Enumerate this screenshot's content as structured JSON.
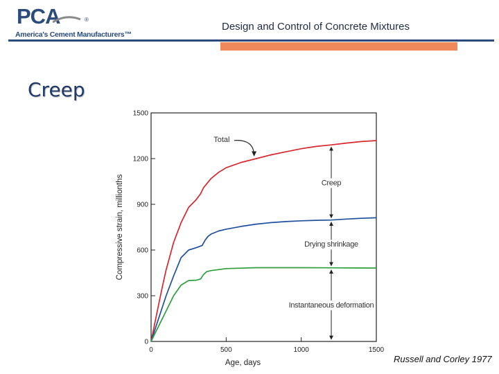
{
  "header": {
    "logo_mark": "PCA",
    "logo_registered": "®",
    "logo_tagline": "America's Cement Manufacturers™",
    "title": "Design and Control of Concrete Mixtures"
  },
  "slide": {
    "title": "Creep",
    "credit": "Russell and Corley 1977"
  },
  "colors": {
    "brand_blue": "#2b4b7a",
    "accent_orange": "#f08a5a",
    "total": "#d8262e",
    "drying": "#1f4f9c",
    "instant": "#2e9e3e"
  },
  "chart_data": {
    "type": "line",
    "xlabel": "Age, days",
    "ylabel": "Compressive strain, millionths",
    "xlim": [
      0,
      1500
    ],
    "ylim": [
      0,
      1500
    ],
    "xticks": [
      0,
      500,
      1000,
      1500
    ],
    "yticks": [
      0,
      300,
      600,
      900,
      1200,
      1500
    ],
    "grid": false,
    "series": [
      {
        "name": "Total",
        "color": "#d8262e",
        "x": [
          0,
          25,
          50,
          75,
          100,
          150,
          200,
          250,
          300,
          330,
          350,
          400,
          450,
          500,
          600,
          700,
          800,
          900,
          1000,
          1100,
          1200,
          1300,
          1400,
          1500
        ],
        "y": [
          0,
          120,
          240,
          360,
          470,
          650,
          780,
          880,
          930,
          970,
          1010,
          1070,
          1110,
          1140,
          1175,
          1200,
          1225,
          1245,
          1265,
          1280,
          1290,
          1302,
          1312,
          1318
        ]
      },
      {
        "name": "",
        "color": "#1f4f9c",
        "x": [
          0,
          25,
          50,
          100,
          150,
          200,
          250,
          300,
          340,
          360,
          380,
          400,
          450,
          500,
          600,
          700,
          800,
          900,
          1000,
          1100,
          1200,
          1300,
          1400,
          1500
        ],
        "y": [
          0,
          75,
          150,
          300,
          430,
          550,
          600,
          615,
          630,
          665,
          690,
          705,
          725,
          737,
          755,
          770,
          780,
          787,
          792,
          795,
          797,
          803,
          808,
          812
        ]
      },
      {
        "name": "",
        "color": "#2e9e3e",
        "x": [
          0,
          25,
          50,
          100,
          150,
          200,
          250,
          300,
          330,
          350,
          370,
          400,
          500,
          700,
          1000,
          1200,
          1500
        ],
        "y": [
          0,
          50,
          100,
          200,
          300,
          370,
          400,
          402,
          410,
          440,
          458,
          465,
          478,
          484,
          484,
          483,
          482
        ]
      }
    ],
    "annotations": [
      {
        "label": "Total",
        "target_x": 695,
        "target_y": 1200
      },
      {
        "label": "Creep",
        "x": 1200,
        "from": 1290,
        "to": 797
      },
      {
        "label": "Drying shrinkage",
        "x": 1200,
        "from": 797,
        "to": 483
      },
      {
        "label": "Instantaneous deformation",
        "x": 1200,
        "from": 483,
        "to": 0
      }
    ]
  }
}
